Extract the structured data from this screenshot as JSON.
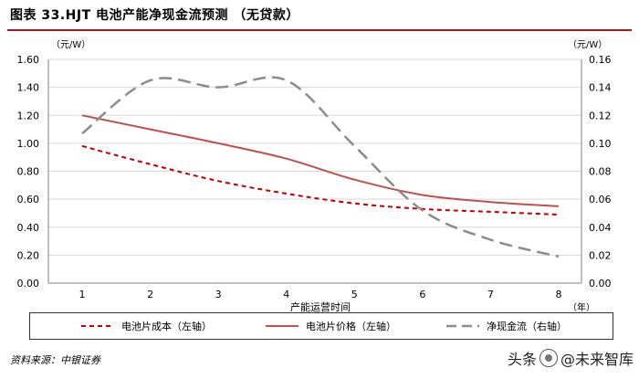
{
  "header": {
    "title": "图表 33.HJT 电池产能净现金流预测 （无贷款）"
  },
  "chart_data": {
    "type": "line",
    "title": "图表 33.HJT 电池产能净现金流预测 （无贷款）",
    "xlabel": "产能运营时间",
    "x_unit": "（年）",
    "ylabel_left": "（元/W）",
    "ylabel_right": "（元/W）",
    "ylim_left": [
      0,
      1.6
    ],
    "ylim_right": [
      0,
      0.16
    ],
    "x": [
      1,
      2,
      3,
      4,
      5,
      6,
      7,
      8
    ],
    "x_ticks": [
      "1",
      "2",
      "3",
      "4",
      "5",
      "6",
      "7",
      "8"
    ],
    "y_ticks_left": [
      "0.00",
      "0.20",
      "0.40",
      "0.60",
      "0.80",
      "1.00",
      "1.20",
      "1.40",
      "1.60"
    ],
    "y_ticks_right": [
      "0.00",
      "0.02",
      "0.04",
      "0.06",
      "0.08",
      "0.10",
      "0.12",
      "0.14",
      "0.16"
    ],
    "grid": true,
    "legend_position": "bottom",
    "series": [
      {
        "name": "电池片成本（左轴）",
        "axis": "left",
        "style": "dashed",
        "color": "#c00000",
        "values": [
          0.98,
          0.85,
          0.73,
          0.64,
          0.57,
          0.53,
          0.51,
          0.49
        ]
      },
      {
        "name": "电池片价格（左轴）",
        "axis": "left",
        "style": "solid",
        "color": "#c0504d",
        "values": [
          1.2,
          1.1,
          1.0,
          0.89,
          0.74,
          0.63,
          0.58,
          0.55
        ]
      },
      {
        "name": "净现金流（右轴）",
        "axis": "right",
        "style": "long-dash",
        "color": "#8c8c8c",
        "values": [
          0.107,
          0.145,
          0.14,
          0.145,
          0.098,
          0.052,
          0.031,
          0.019
        ]
      }
    ]
  },
  "legend": {
    "item1": "电池片成本（左轴）",
    "item2": "电池片价格（左轴）",
    "item3": "净现金流（右轴）"
  },
  "source": "资料来源：中银证券",
  "watermark": {
    "prefix": "头条",
    "name": "@未来智库"
  }
}
